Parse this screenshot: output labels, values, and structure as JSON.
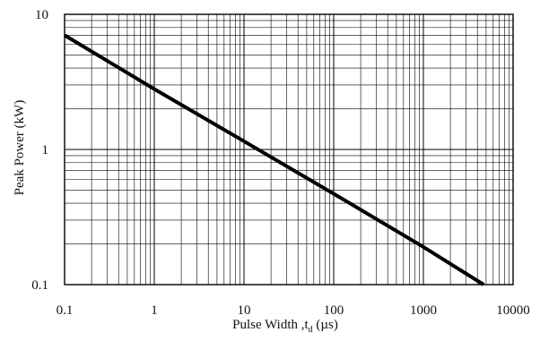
{
  "chart_data": {
    "type": "line",
    "x_scale": "log",
    "y_scale": "log",
    "xlim": [
      0.1,
      10000
    ],
    "ylim": [
      0.1,
      10
    ],
    "grid": true,
    "legend": "none",
    "xlabel": "Pulse Width ,t",
    "xlabel_sub": "d",
    "xlabel_unit": " (µs)",
    "ylabel": "Peak Power  (kW)",
    "x_ticks": [
      "0.1",
      "1",
      "10",
      "100",
      "1000",
      "10000"
    ],
    "y_ticks": [
      "0.1",
      "1",
      "10"
    ],
    "series": [
      {
        "color": "#000000",
        "x": [
          0.1,
          1,
          10,
          100,
          1000,
          4700
        ],
        "y": [
          7.0,
          2.8,
          1.15,
          0.47,
          0.19,
          0.1
        ]
      }
    ]
  }
}
